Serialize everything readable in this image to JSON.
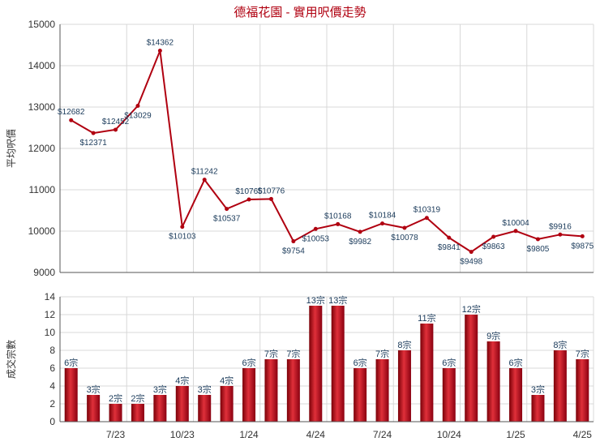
{
  "chart_data": [
    {
      "type": "line",
      "title": "德福花園 - 實用呎價走勢",
      "ylabel": "平均呎價",
      "ylim": [
        9000,
        15000
      ],
      "yticks": [
        "9000",
        "10000",
        "11000",
        "12000",
        "13000",
        "14000",
        "15000"
      ],
      "x_ticks": [
        "7/23",
        "10/23",
        "1/24",
        "4/24",
        "7/24",
        "10/24",
        "1/25",
        "4/25"
      ],
      "values": [
        12682,
        12371,
        12452,
        13029,
        14362,
        10103,
        11242,
        10537,
        10765,
        10776,
        9754,
        10053,
        10168,
        9982,
        10184,
        10078,
        10319,
        9841,
        9498,
        9863,
        10004,
        9805,
        9916,
        9875
      ],
      "labels": [
        "$12682",
        "$12371",
        "$12452",
        "$13029",
        "$14362",
        "$10103",
        "$11242",
        "$10537",
        "$10765",
        "$10776",
        "$9754",
        "$10053",
        "$10168",
        "$9982",
        "$10184",
        "$10078",
        "$10319",
        "$9841",
        "$9498",
        "$9863",
        "$10004",
        "$9805",
        "$9916",
        "$9875"
      ],
      "color": "#b00010"
    },
    {
      "type": "bar",
      "ylabel": "成交宗數",
      "ylim": [
        0,
        14
      ],
      "yticks": [
        "0",
        "2",
        "4",
        "6",
        "8",
        "10",
        "12",
        "14"
      ],
      "x_ticks": [
        "7/23",
        "10/23",
        "1/24",
        "4/24",
        "7/24",
        "10/24",
        "1/25",
        "4/25"
      ],
      "values": [
        6,
        3,
        2,
        2,
        3,
        4,
        3,
        4,
        6,
        7,
        7,
        13,
        13,
        6,
        7,
        8,
        11,
        6,
        12,
        9,
        6,
        3,
        8,
        7
      ],
      "labels": [
        "6宗",
        "3宗",
        "2宗",
        "2宗",
        "3宗",
        "4宗",
        "3宗",
        "4宗",
        "6宗",
        "7宗",
        "7宗",
        "13宗",
        "13宗",
        "6宗",
        "7宗",
        "8宗",
        "11宗",
        "6宗",
        "12宗",
        "9宗",
        "6宗",
        "3宗",
        "8宗",
        "7宗"
      ],
      "color": "#b00010"
    }
  ]
}
